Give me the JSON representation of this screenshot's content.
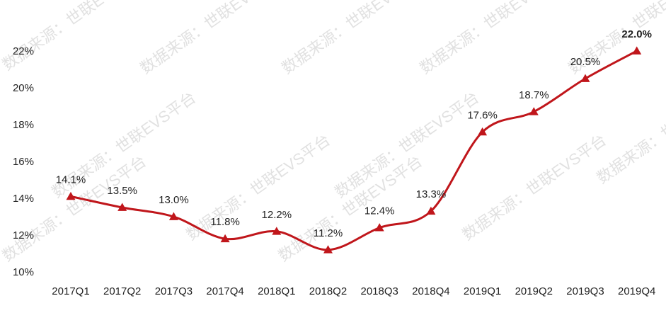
{
  "chart_data": {
    "type": "line",
    "title": "",
    "xlabel": "",
    "ylabel": "",
    "categories": [
      "2017Q1",
      "2017Q2",
      "2017Q3",
      "2017Q4",
      "2018Q1",
      "2018Q2",
      "2018Q3",
      "2018Q4",
      "2019Q1",
      "2019Q2",
      "2019Q3",
      "2019Q4"
    ],
    "series": [
      {
        "values": [
          14.1,
          13.5,
          13.0,
          11.8,
          12.2,
          11.2,
          12.4,
          13.3,
          17.6,
          18.7,
          20.5,
          22.0
        ],
        "labels": [
          "14.1%",
          "13.5%",
          "13.0%",
          "11.8%",
          "12.2%",
          "11.2%",
          "12.4%",
          "13.3%",
          "17.6%",
          "18.7%",
          "20.5%",
          "22.0%"
        ],
        "color": "#c0161b",
        "marker": "triangle"
      }
    ],
    "ylim": [
      10,
      22
    ],
    "yticks": [
      10,
      12,
      14,
      16,
      18,
      20,
      22
    ],
    "ytick_labels": [
      "10%",
      "12%",
      "14%",
      "16%",
      "18%",
      "20%",
      "22%"
    ],
    "grid": false,
    "legend": "none",
    "emphasized_label_index": 11
  },
  "watermark": {
    "line1": "数据来源：世联EVS平台"
  }
}
